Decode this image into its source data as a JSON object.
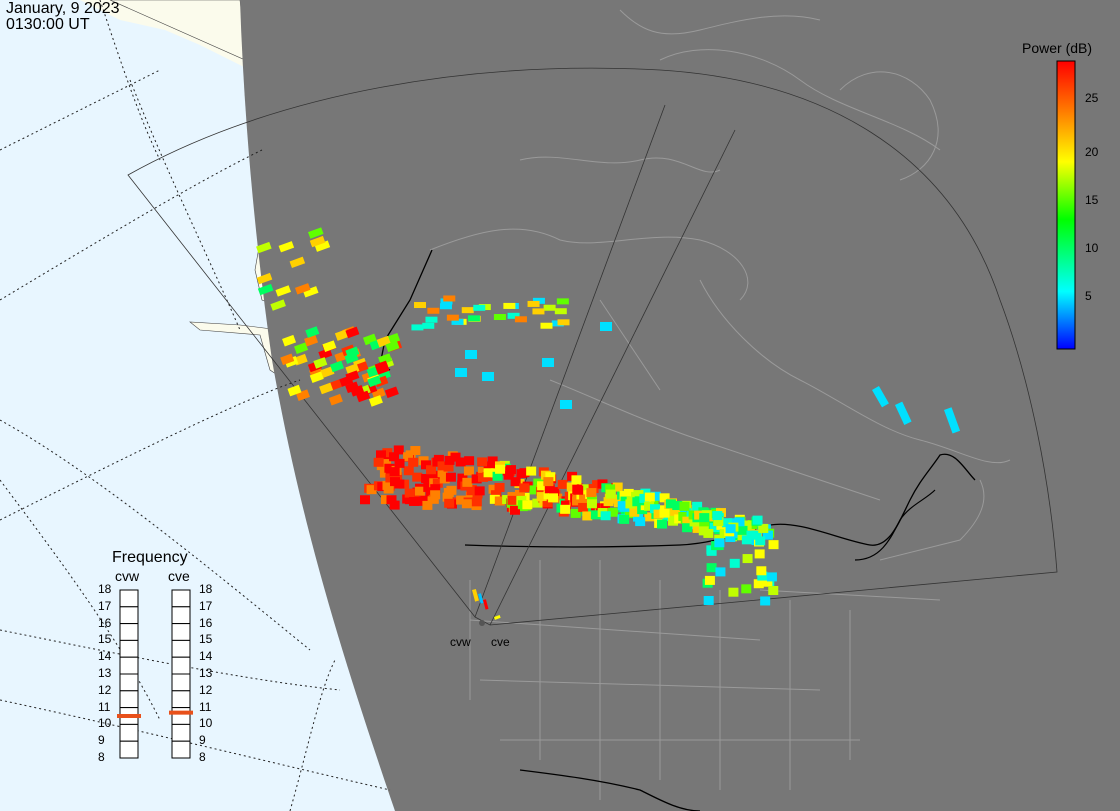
{
  "header": {
    "date": "January, 9 2023",
    "time": "0130:00 UT"
  },
  "colorbar": {
    "title": "Power (dB)",
    "ticks": [
      5,
      10,
      15,
      20,
      25
    ],
    "range": [
      0,
      29
    ],
    "colors": [
      "#0000ff",
      "#00ffff",
      "#00ff00",
      "#ffff00",
      "#ff8000",
      "#ff0000"
    ]
  },
  "frequency": {
    "title": "Frequency",
    "radars": [
      {
        "name": "cvw",
        "value": 10.5
      },
      {
        "name": "cve",
        "value": 10.7
      }
    ],
    "ticks": [
      18,
      17,
      16,
      15,
      14,
      13,
      12,
      11,
      10,
      9,
      8
    ]
  },
  "sites": [
    {
      "name": "cvw"
    },
    {
      "name": "cve"
    }
  ]
}
